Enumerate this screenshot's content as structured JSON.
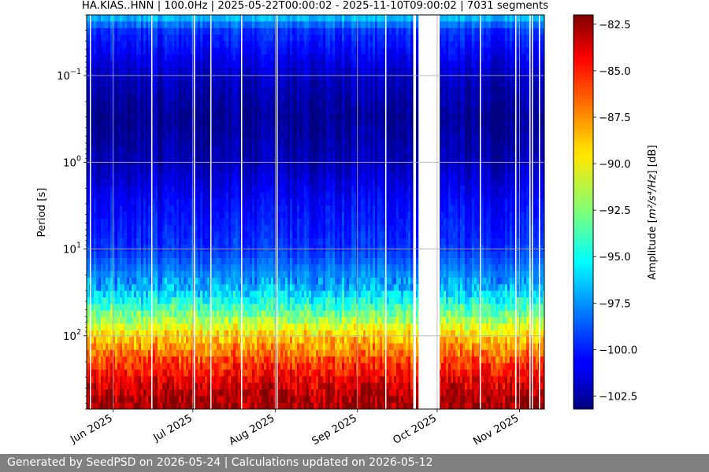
{
  "chart_data": {
    "type": "heatmap",
    "title": "HA.KIAS..HNN | 100.0Hz | 2025-05-22T00:00:02 - 2025-11-10T09:00:02 | 7031 segments",
    "ylabel": "Period [s]",
    "yscale": "log",
    "yaxis_inverted": true,
    "ylim": [
      0.02,
      700
    ],
    "y_ticks": [
      {
        "value": 0.1,
        "base": "10",
        "exp": "−1"
      },
      {
        "value": 1,
        "base": "10",
        "exp": "0"
      },
      {
        "value": 10,
        "base": "10",
        "exp": "1"
      },
      {
        "value": 100,
        "base": "10",
        "exp": "2"
      }
    ],
    "x_range": [
      "2025-05-22",
      "2025-11-10"
    ],
    "x_ticks": [
      {
        "date": "2025-06-01",
        "label": "Jun 2025"
      },
      {
        "date": "2025-07-01",
        "label": "Jul 2025"
      },
      {
        "date": "2025-08-01",
        "label": "Aug 2025"
      },
      {
        "date": "2025-09-01",
        "label": "Sep 2025"
      },
      {
        "date": "2025-10-01",
        "label": "Oct 2025"
      },
      {
        "date": "2025-11-01",
        "label": "Nov 2025"
      }
    ],
    "grid": true,
    "data_gaps": [
      {
        "start": "2025-09-22",
        "end": "2025-09-23"
      },
      {
        "start": "2025-09-24",
        "end": "2025-09-30"
      },
      {
        "start": "2025-09-30",
        "end": "2025-10-02"
      }
    ],
    "amplitude_profile": [
      {
        "period": 0.02,
        "amplitude_db": -96.0
      },
      {
        "period": 0.03,
        "amplitude_db": -99.5
      },
      {
        "period": 0.1,
        "amplitude_db": -101.8
      },
      {
        "period": 0.3,
        "amplitude_db": -102.8
      },
      {
        "period": 1,
        "amplitude_db": -102.0
      },
      {
        "period": 3,
        "amplitude_db": -100.5
      },
      {
        "period": 10,
        "amplitude_db": -99.5
      },
      {
        "period": 30,
        "amplitude_db": -96.5
      },
      {
        "period": 60,
        "amplitude_db": -92.5
      },
      {
        "period": 100,
        "amplitude_db": -89.0
      },
      {
        "period": 200,
        "amplitude_db": -86.0
      },
      {
        "period": 400,
        "amplitude_db": -83.5
      },
      {
        "period": 700,
        "amplitude_db": -82.5
      }
    ],
    "colorbar": {
      "label_prefix": "Amplitude [",
      "label_math": "m²/s⁴/Hz",
      "label_suffix": "] [dB]",
      "min": -103.2,
      "max": -82.0,
      "ticks": [
        {
          "value": -82.5,
          "label": "−82.5"
        },
        {
          "value": -85.0,
          "label": "−85.0"
        },
        {
          "value": -87.5,
          "label": "−87.5"
        },
        {
          "value": -90.0,
          "label": "−90.0"
        },
        {
          "value": -92.5,
          "label": "−92.5"
        },
        {
          "value": -95.0,
          "label": "−95.0"
        },
        {
          "value": -97.5,
          "label": "−97.5"
        },
        {
          "value": -100.0,
          "label": "−100.0"
        },
        {
          "value": -102.5,
          "label": "−102.5"
        }
      ],
      "colormap": "jet"
    }
  },
  "footer": {
    "text": "Generated by SeedPSD on 2026-05-24 | Calculations updated on 2026-05-12"
  }
}
